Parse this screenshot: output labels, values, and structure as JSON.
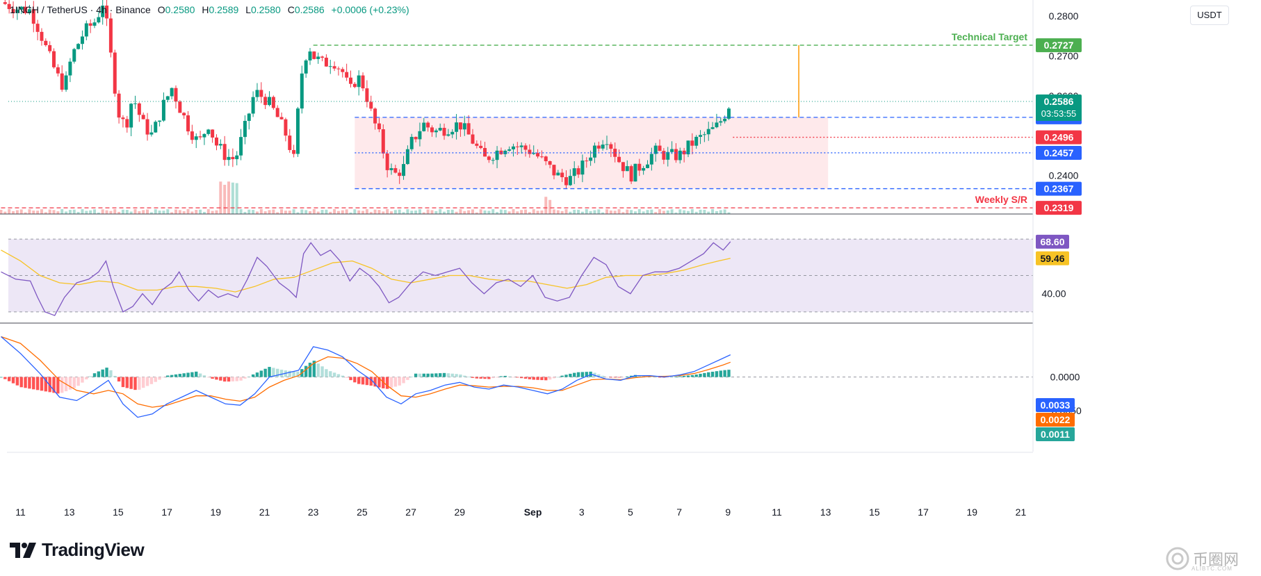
{
  "header": {
    "symbol": "1INCH / TetherUS · 4h · Binance",
    "o_label": "O",
    "o_value": "0.2580",
    "h_label": "H",
    "h_value": "0.2589",
    "l_label": "L",
    "l_value": "0.2580",
    "c_label": "C",
    "c_value": "0.2586",
    "change": "+0.0006 (+0.23%)",
    "currency": "USDT"
  },
  "branding": {
    "logo_text": "TradingView",
    "watermark_text": "币圈网",
    "watermark_sub": "ALIBTC.COM"
  },
  "colors": {
    "up": "#089981",
    "down": "#f23645",
    "range_fill": "#fde2e4",
    "rsi_line": "#7e57c2",
    "rsi_ma": "#f7c325",
    "rsi_band": "#ede7f6",
    "macd_line": "#2962ff",
    "signal_line": "#ff6d00",
    "target_green": "#4caf50",
    "blue_level": "#2962ff",
    "red_level": "#f23645"
  },
  "chart_data": [
    {
      "type": "candlestick",
      "x_ticks": [
        "11",
        "13",
        "15",
        "17",
        "19",
        "21",
        "23",
        "25",
        "27",
        "29",
        "Sep",
        "3",
        "5",
        "7",
        "9",
        "11",
        "13",
        "15",
        "17",
        "19",
        "21"
      ],
      "y_ticks": [
        "0.2800",
        "0.2700",
        "0.2600",
        "0.2400"
      ],
      "ylim": [
        0.23,
        0.283
      ],
      "x_range_days": [
        10.5,
        52.5
      ],
      "last_bar_day": 40.1,
      "keyframes": [
        [
          10.2,
          0.2835
        ],
        [
          10.8,
          0.282
        ],
        [
          11.4,
          0.2815
        ],
        [
          11.8,
          0.276
        ],
        [
          12.1,
          0.271
        ],
        [
          12.5,
          0.265
        ],
        [
          12.8,
          0.262
        ],
        [
          13.1,
          0.27
        ],
        [
          13.6,
          0.276
        ],
        [
          14.1,
          0.279
        ],
        [
          14.4,
          0.284
        ],
        [
          14.7,
          0.27
        ],
        [
          15.0,
          0.256
        ],
        [
          15.3,
          0.252
        ],
        [
          15.6,
          0.26
        ],
        [
          16.0,
          0.253
        ],
        [
          16.4,
          0.25
        ],
        [
          16.8,
          0.257
        ],
        [
          17.2,
          0.262
        ],
        [
          17.6,
          0.256
        ],
        [
          17.9,
          0.252
        ],
        [
          18.3,
          0.248
        ],
        [
          18.7,
          0.253
        ],
        [
          19.0,
          0.248
        ],
        [
          19.4,
          0.245
        ],
        [
          19.8,
          0.244
        ],
        [
          20.2,
          0.252
        ],
        [
          20.6,
          0.261
        ],
        [
          21.1,
          0.259
        ],
        [
          21.5,
          0.255
        ],
        [
          21.9,
          0.25
        ],
        [
          22.2,
          0.244
        ],
        [
          22.5,
          0.265
        ],
        [
          22.8,
          0.273
        ],
        [
          23.0,
          0.27
        ],
        [
          23.4,
          0.268
        ],
        [
          23.8,
          0.269
        ],
        [
          24.2,
          0.266
        ],
        [
          24.5,
          0.261
        ],
        [
          24.8,
          0.265
        ],
        [
          25.1,
          0.262
        ],
        [
          25.4,
          0.255
        ],
        [
          25.7,
          0.25
        ],
        [
          26.0,
          0.243
        ],
        [
          26.3,
          0.24
        ],
        [
          26.7,
          0.242
        ],
        [
          27.0,
          0.248
        ],
        [
          27.5,
          0.253
        ],
        [
          28.0,
          0.251
        ],
        [
          28.5,
          0.252
        ],
        [
          29.0,
          0.253
        ],
        [
          29.5,
          0.249
        ],
        [
          30.0,
          0.244
        ],
        [
          30.5,
          0.246
        ],
        [
          31.0,
          0.248
        ],
        [
          31.5,
          0.247
        ],
        [
          32.0,
          0.246
        ],
        [
          32.5,
          0.243
        ],
        [
          33.0,
          0.24
        ],
        [
          33.5,
          0.239
        ],
        [
          34.0,
          0.242
        ],
        [
          34.5,
          0.247
        ],
        [
          35.0,
          0.25
        ],
        [
          35.5,
          0.244
        ],
        [
          36.0,
          0.24
        ],
        [
          36.5,
          0.243
        ],
        [
          37.0,
          0.246
        ],
        [
          37.5,
          0.245
        ],
        [
          38.0,
          0.245
        ],
        [
          38.5,
          0.248
        ],
        [
          39.0,
          0.25
        ],
        [
          39.5,
          0.252
        ],
        [
          39.8,
          0.2546
        ],
        [
          40.1,
          0.2586
        ]
      ],
      "levels": [
        {
          "label": "Technical Target",
          "value": "0.2727",
          "color": "#4caf50",
          "style": "dashed"
        },
        {
          "label": "",
          "value": "0.2546",
          "color": "#2962ff",
          "style": "dashed"
        },
        {
          "label": "",
          "value": "0.2496",
          "color": "#f23645",
          "style": "dotted"
        },
        {
          "label": "",
          "value": "0.2457",
          "color": "#2962ff",
          "style": "dotted"
        },
        {
          "label": "",
          "value": "0.2367",
          "color": "#2962ff",
          "style": "dashed"
        },
        {
          "label": "Weekly S/R",
          "value": "0.2319",
          "color": "#f23645",
          "style": "dashed"
        }
      ],
      "current_price": "0.2586",
      "countdown": "03:53:55",
      "range_box": {
        "from_day": 24.7,
        "to_day": 44.1,
        "low": 0.2367,
        "high": 0.2546
      },
      "target_arrow": {
        "day": 42.9,
        "from": 0.2546,
        "to": 0.2727
      }
    },
    {
      "type": "line",
      "title": "RSI",
      "y_ticks": [
        "40.00"
      ],
      "ylim": [
        25,
        80
      ],
      "band": [
        30,
        70
      ],
      "series": [
        {
          "values": [
            [
              10.2,
              52
            ],
            [
              10.8,
              48
            ],
            [
              11.4,
              47
            ],
            [
              11.7,
              38
            ],
            [
              12.0,
              30
            ],
            [
              12.4,
              28
            ],
            [
              12.8,
              38
            ],
            [
              13.3,
              46
            ],
            [
              13.8,
              48
            ],
            [
              14.2,
              52
            ],
            [
              14.5,
              58
            ],
            [
              14.8,
              44
            ],
            [
              15.2,
              30
            ],
            [
              15.6,
              33
            ],
            [
              16.0,
              40
            ],
            [
              16.4,
              34
            ],
            [
              16.8,
              42
            ],
            [
              17.2,
              46
            ],
            [
              17.5,
              52
            ],
            [
              17.9,
              42
            ],
            [
              18.3,
              36
            ],
            [
              18.7,
              42
            ],
            [
              19.1,
              38
            ],
            [
              19.5,
              40
            ],
            [
              19.9,
              38
            ],
            [
              20.3,
              48
            ],
            [
              20.7,
              60
            ],
            [
              21.1,
              55
            ],
            [
              21.6,
              46
            ],
            [
              22.0,
              42
            ],
            [
              22.3,
              38
            ],
            [
              22.6,
              62
            ],
            [
              22.9,
              68
            ],
            [
              23.3,
              61
            ],
            [
              23.7,
              64
            ],
            [
              24.1,
              58
            ],
            [
              24.5,
              47
            ],
            [
              24.9,
              54
            ],
            [
              25.3,
              50
            ],
            [
              25.7,
              44
            ],
            [
              26.1,
              35
            ],
            [
              26.5,
              38
            ],
            [
              27.0,
              46
            ],
            [
              27.5,
              52
            ],
            [
              28.0,
              50
            ],
            [
              28.5,
              52
            ],
            [
              29.0,
              54
            ],
            [
              29.5,
              46
            ],
            [
              30.0,
              40
            ],
            [
              30.5,
              46
            ],
            [
              31.0,
              48
            ],
            [
              31.5,
              44
            ],
            [
              32.0,
              50
            ],
            [
              32.5,
              38
            ],
            [
              33.0,
              36
            ],
            [
              33.5,
              38
            ],
            [
              34.0,
              50
            ],
            [
              34.5,
              60
            ],
            [
              35.0,
              56
            ],
            [
              35.5,
              44
            ],
            [
              36.0,
              40
            ],
            [
              36.5,
              50
            ],
            [
              37.0,
              52
            ],
            [
              37.5,
              52
            ],
            [
              38.0,
              54
            ],
            [
              38.5,
              58
            ],
            [
              39.0,
              62
            ],
            [
              39.4,
              68
            ],
            [
              39.8,
              64
            ],
            [
              40.1,
              68.6
            ]
          ]
        },
        {
          "values": [
            [
              10.2,
              64
            ],
            [
              11.0,
              58
            ],
            [
              11.8,
              50
            ],
            [
              12.6,
              46
            ],
            [
              13.4,
              45
            ],
            [
              14.2,
              47
            ],
            [
              15.0,
              46
            ],
            [
              15.8,
              42
            ],
            [
              16.6,
              42
            ],
            [
              17.4,
              44
            ],
            [
              18.2,
              44
            ],
            [
              19.0,
              43
            ],
            [
              19.8,
              41
            ],
            [
              20.6,
              44
            ],
            [
              21.4,
              48
            ],
            [
              22.2,
              49
            ],
            [
              23.0,
              53
            ],
            [
              23.8,
              57
            ],
            [
              24.6,
              58
            ],
            [
              25.4,
              54
            ],
            [
              26.2,
              48
            ],
            [
              27.0,
              46
            ],
            [
              27.8,
              48
            ],
            [
              28.6,
              50
            ],
            [
              29.4,
              50
            ],
            [
              30.2,
              48
            ],
            [
              31.0,
              47
            ],
            [
              31.8,
              47
            ],
            [
              32.6,
              45
            ],
            [
              33.4,
              43
            ],
            [
              34.2,
              45
            ],
            [
              35.0,
              49
            ],
            [
              35.8,
              50
            ],
            [
              36.6,
              50
            ],
            [
              37.4,
              51
            ],
            [
              38.2,
              53
            ],
            [
              39.0,
              56
            ],
            [
              39.6,
              58
            ],
            [
              40.1,
              59.46
            ]
          ]
        }
      ],
      "last_values": [
        "68.60",
        "59.46"
      ]
    },
    {
      "type": "bar",
      "title": "MACD",
      "y_ticks": [
        "0.0000",
        "-0.0050"
      ],
      "ylim": [
        -0.008,
        0.0075
      ],
      "macd": [
        [
          10.2,
          0.006
        ],
        [
          11.0,
          0.0035
        ],
        [
          11.8,
          0.0005
        ],
        [
          12.6,
          -0.003
        ],
        [
          13.3,
          -0.0035
        ],
        [
          14.0,
          -0.002
        ],
        [
          14.6,
          -0.0005
        ],
        [
          15.2,
          -0.004
        ],
        [
          15.8,
          -0.006
        ],
        [
          16.4,
          -0.0055
        ],
        [
          17.0,
          -0.004
        ],
        [
          17.6,
          -0.003
        ],
        [
          18.2,
          -0.002
        ],
        [
          18.8,
          -0.003
        ],
        [
          19.4,
          -0.004
        ],
        [
          20.0,
          -0.0042
        ],
        [
          20.6,
          -0.0025
        ],
        [
          21.2,
          0.0
        ],
        [
          21.8,
          0.0005
        ],
        [
          22.4,
          0.001
        ],
        [
          23.0,
          0.0045
        ],
        [
          23.6,
          0.004
        ],
        [
          24.2,
          0.003
        ],
        [
          24.8,
          0.001
        ],
        [
          25.4,
          -0.0005
        ],
        [
          26.0,
          -0.003
        ],
        [
          26.6,
          -0.004
        ],
        [
          27.2,
          -0.0025
        ],
        [
          27.8,
          -0.002
        ],
        [
          28.4,
          -0.0012
        ],
        [
          29.0,
          -0.0008
        ],
        [
          29.6,
          -0.0015
        ],
        [
          30.2,
          -0.0018
        ],
        [
          30.8,
          -0.0012
        ],
        [
          31.4,
          -0.0015
        ],
        [
          32.0,
          -0.002
        ],
        [
          32.6,
          -0.0025
        ],
        [
          33.2,
          -0.0018
        ],
        [
          33.8,
          -0.0005
        ],
        [
          34.4,
          0.0004
        ],
        [
          35.0,
          -0.0003
        ],
        [
          35.6,
          -0.0005
        ],
        [
          36.2,
          0.0002
        ],
        [
          36.8,
          0.0002
        ],
        [
          37.4,
          0.0
        ],
        [
          38.0,
          0.0003
        ],
        [
          38.6,
          0.0008
        ],
        [
          39.2,
          0.0018
        ],
        [
          39.8,
          0.0028
        ],
        [
          40.1,
          0.0033
        ]
      ],
      "signal": [
        [
          10.2,
          0.006
        ],
        [
          11.0,
          0.005
        ],
        [
          11.8,
          0.0025
        ],
        [
          12.6,
          -0.0005
        ],
        [
          13.3,
          -0.002
        ],
        [
          14.0,
          -0.0025
        ],
        [
          14.6,
          -0.002
        ],
        [
          15.2,
          -0.0025
        ],
        [
          15.8,
          -0.004
        ],
        [
          16.4,
          -0.0045
        ],
        [
          17.0,
          -0.0042
        ],
        [
          17.6,
          -0.0035
        ],
        [
          18.2,
          -0.0028
        ],
        [
          18.8,
          -0.0028
        ],
        [
          19.4,
          -0.0033
        ],
        [
          20.0,
          -0.0036
        ],
        [
          20.6,
          -0.003
        ],
        [
          21.2,
          -0.0015
        ],
        [
          21.8,
          -0.0005
        ],
        [
          22.4,
          0.0002
        ],
        [
          23.0,
          0.002
        ],
        [
          23.6,
          0.003
        ],
        [
          24.2,
          0.0028
        ],
        [
          24.8,
          0.002
        ],
        [
          25.4,
          0.0008
        ],
        [
          26.0,
          -0.0012
        ],
        [
          26.6,
          -0.0028
        ],
        [
          27.2,
          -0.003
        ],
        [
          27.8,
          -0.0025
        ],
        [
          28.4,
          -0.0018
        ],
        [
          29.0,
          -0.0012
        ],
        [
          29.6,
          -0.0013
        ],
        [
          30.2,
          -0.0015
        ],
        [
          30.8,
          -0.0014
        ],
        [
          31.4,
          -0.0014
        ],
        [
          32.0,
          -0.0016
        ],
        [
          32.6,
          -0.002
        ],
        [
          33.2,
          -0.002
        ],
        [
          33.8,
          -0.0012
        ],
        [
          34.4,
          -0.0004
        ],
        [
          35.0,
          -0.0003
        ],
        [
          35.6,
          -0.0004
        ],
        [
          36.2,
          -0.0001
        ],
        [
          36.8,
          0.0001
        ],
        [
          37.4,
          0.0001
        ],
        [
          38.0,
          0.0002
        ],
        [
          38.6,
          0.0005
        ],
        [
          39.2,
          0.0011
        ],
        [
          39.8,
          0.0018
        ],
        [
          40.1,
          0.0022
        ]
      ],
      "last_values": [
        "0.0033",
        "0.0022",
        "0.0011"
      ]
    }
  ]
}
